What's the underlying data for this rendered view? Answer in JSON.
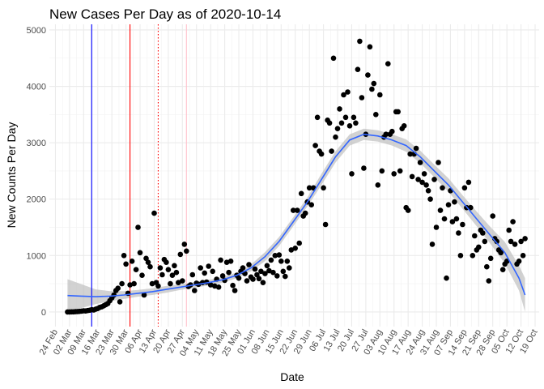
{
  "chart_data": {
    "type": "scatter",
    "title": "New Cases Per Day as of 2020-10-14",
    "xlabel": "Date",
    "ylabel": "New Counts Per Day",
    "ylim": [
      -260,
      5100
    ],
    "y_ticks": [
      0,
      1000,
      2000,
      3000,
      4000,
      5000
    ],
    "xlim": [
      "2020-02-21",
      "2020-10-21"
    ],
    "x_ticks": [
      "2020-02-24",
      "2020-03-02",
      "2020-03-09",
      "2020-03-16",
      "2020-03-23",
      "2020-03-30",
      "2020-04-06",
      "2020-04-13",
      "2020-04-20",
      "2020-04-27",
      "2020-05-04",
      "2020-05-11",
      "2020-05-18",
      "2020-05-25",
      "2020-06-01",
      "2020-06-08",
      "2020-06-15",
      "2020-06-22",
      "2020-06-29",
      "2020-07-06",
      "2020-07-13",
      "2020-07-20",
      "2020-07-27",
      "2020-08-03",
      "2020-08-10",
      "2020-08-17",
      "2020-08-24",
      "2020-08-31",
      "2020-09-07",
      "2020-09-14",
      "2020-09-21",
      "2020-09-28",
      "2020-10-05",
      "2020-10-12",
      "2020-10-19"
    ],
    "x_tick_labels": [
      "24 Feb",
      "02 Mar",
      "09 Mar",
      "16 Mar",
      "23 Mar",
      "30 Mar",
      "06 Apr",
      "13 Apr",
      "20 Apr",
      "27 Apr",
      "04 May",
      "11 May",
      "18 May",
      "25 May",
      "01 Jun",
      "08 Jun",
      "15 Jun",
      "22 Jun",
      "29 Jun",
      "06 Jul",
      "13 Jul",
      "20 Jul",
      "27 Jul",
      "03 Aug",
      "10 Aug",
      "17 Aug",
      "24 Aug",
      "31 Aug",
      "07 Sep",
      "14 Sep",
      "21 Sep",
      "28 Sep",
      "05 Oct",
      "12 Oct",
      "19 Oct"
    ],
    "grid": true,
    "vlines": [
      {
        "x": "2020-03-13",
        "color": "#0000ff",
        "style": "solid"
      },
      {
        "x": "2020-04-01",
        "color": "#ff0000",
        "style": "solid"
      },
      {
        "x": "2020-04-15",
        "color": "#ff0000",
        "style": "dotted"
      },
      {
        "x": "2020-04-29",
        "color": "#ffc0cb",
        "style": "solid"
      }
    ],
    "points": [
      [
        "2020-03-01",
        0
      ],
      [
        "2020-03-02",
        0
      ],
      [
        "2020-03-03",
        2
      ],
      [
        "2020-03-04",
        1
      ],
      [
        "2020-03-05",
        5
      ],
      [
        "2020-03-06",
        8
      ],
      [
        "2020-03-07",
        10
      ],
      [
        "2020-03-08",
        15
      ],
      [
        "2020-03-09",
        20
      ],
      [
        "2020-03-10",
        18
      ],
      [
        "2020-03-11",
        25
      ],
      [
        "2020-03-12",
        30
      ],
      [
        "2020-03-13",
        40
      ],
      [
        "2020-03-14",
        35
      ],
      [
        "2020-03-15",
        50
      ],
      [
        "2020-03-16",
        60
      ],
      [
        "2020-03-17",
        80
      ],
      [
        "2020-03-18",
        90
      ],
      [
        "2020-03-19",
        110
      ],
      [
        "2020-03-20",
        130
      ],
      [
        "2020-03-21",
        150
      ],
      [
        "2020-03-22",
        200
      ],
      [
        "2020-03-23",
        250
      ],
      [
        "2020-03-24",
        300
      ],
      [
        "2020-03-25",
        380
      ],
      [
        "2020-03-26",
        420
      ],
      [
        "2020-03-27",
        180
      ],
      [
        "2020-03-28",
        500
      ],
      [
        "2020-03-29",
        1000
      ],
      [
        "2020-03-30",
        850
      ],
      [
        "2020-03-31",
        330
      ],
      [
        "2020-04-01",
        480
      ],
      [
        "2020-04-02",
        900
      ],
      [
        "2020-04-03",
        500
      ],
      [
        "2020-04-04",
        750
      ],
      [
        "2020-04-05",
        1500
      ],
      [
        "2020-04-06",
        1050
      ],
      [
        "2020-04-07",
        650
      ],
      [
        "2020-04-08",
        300
      ],
      [
        "2020-04-09",
        950
      ],
      [
        "2020-04-10",
        880
      ],
      [
        "2020-04-11",
        800
      ],
      [
        "2020-04-12",
        500
      ],
      [
        "2020-04-13",
        1750
      ],
      [
        "2020-04-14",
        520
      ],
      [
        "2020-04-15",
        460
      ],
      [
        "2020-04-16",
        780
      ],
      [
        "2020-04-17",
        660
      ],
      [
        "2020-04-18",
        930
      ],
      [
        "2020-04-19",
        880
      ],
      [
        "2020-04-20",
        750
      ],
      [
        "2020-04-21",
        500
      ],
      [
        "2020-04-22",
        650
      ],
      [
        "2020-04-23",
        820
      ],
      [
        "2020-04-24",
        700
      ],
      [
        "2020-04-25",
        520
      ],
      [
        "2020-04-26",
        1020
      ],
      [
        "2020-04-27",
        550
      ],
      [
        "2020-04-28",
        1200
      ],
      [
        "2020-04-29",
        1080
      ],
      [
        "2020-04-30",
        450
      ],
      [
        "2020-05-01",
        480
      ],
      [
        "2020-05-02",
        660
      ],
      [
        "2020-05-03",
        380
      ],
      [
        "2020-05-04",
        510
      ],
      [
        "2020-05-05",
        490
      ],
      [
        "2020-05-06",
        780
      ],
      [
        "2020-05-07",
        520
      ],
      [
        "2020-05-08",
        690
      ],
      [
        "2020-05-09",
        530
      ],
      [
        "2020-05-10",
        810
      ],
      [
        "2020-05-11",
        480
      ],
      [
        "2020-05-12",
        720
      ],
      [
        "2020-05-13",
        460
      ],
      [
        "2020-05-14",
        580
      ],
      [
        "2020-05-15",
        440
      ],
      [
        "2020-05-16",
        920
      ],
      [
        "2020-05-17",
        640
      ],
      [
        "2020-05-18",
        560
      ],
      [
        "2020-05-19",
        880
      ],
      [
        "2020-05-20",
        700
      ],
      [
        "2020-05-21",
        900
      ],
      [
        "2020-05-22",
        470
      ],
      [
        "2020-05-23",
        380
      ],
      [
        "2020-05-24",
        650
      ],
      [
        "2020-05-25",
        600
      ],
      [
        "2020-05-26",
        720
      ],
      [
        "2020-05-27",
        780
      ],
      [
        "2020-05-28",
        680
      ],
      [
        "2020-05-29",
        550
      ],
      [
        "2020-05-30",
        840
      ],
      [
        "2020-05-31",
        620
      ],
      [
        "2020-06-01",
        580
      ],
      [
        "2020-06-02",
        760
      ],
      [
        "2020-06-03",
        660
      ],
      [
        "2020-06-04",
        590
      ],
      [
        "2020-06-05",
        720
      ],
      [
        "2020-06-06",
        520
      ],
      [
        "2020-06-07",
        680
      ],
      [
        "2020-06-08",
        820
      ],
      [
        "2020-06-09",
        730
      ],
      [
        "2020-06-10",
        920
      ],
      [
        "2020-06-11",
        700
      ],
      [
        "2020-06-12",
        1000
      ],
      [
        "2020-06-13",
        640
      ],
      [
        "2020-06-14",
        1010
      ],
      [
        "2020-06-15",
        900
      ],
      [
        "2020-06-16",
        720
      ],
      [
        "2020-06-17",
        630
      ],
      [
        "2020-06-18",
        900
      ],
      [
        "2020-06-19",
        780
      ],
      [
        "2020-06-20",
        1100
      ],
      [
        "2020-06-21",
        1800
      ],
      [
        "2020-06-22",
        1130
      ],
      [
        "2020-06-23",
        1800
      ],
      [
        "2020-06-24",
        1220
      ],
      [
        "2020-06-25",
        2100
      ],
      [
        "2020-06-26",
        1700
      ],
      [
        "2020-06-27",
        1750
      ],
      [
        "2020-06-28",
        1950
      ],
      [
        "2020-06-29",
        2200
      ],
      [
        "2020-06-30",
        1900
      ],
      [
        "2020-07-01",
        2200
      ],
      [
        "2020-07-02",
        2950
      ],
      [
        "2020-07-03",
        3450
      ],
      [
        "2020-07-04",
        2850
      ],
      [
        "2020-07-05",
        2800
      ],
      [
        "2020-07-06",
        2200
      ],
      [
        "2020-07-07",
        1550
      ],
      [
        "2020-07-08",
        3400
      ],
      [
        "2020-07-09",
        3350
      ],
      [
        "2020-07-10",
        2850
      ],
      [
        "2020-07-11",
        4500
      ],
      [
        "2020-07-12",
        3100
      ],
      [
        "2020-07-13",
        3250
      ],
      [
        "2020-07-14",
        3600
      ],
      [
        "2020-07-15",
        3350
      ],
      [
        "2020-07-16",
        3850
      ],
      [
        "2020-07-17",
        3450
      ],
      [
        "2020-07-18",
        3900
      ],
      [
        "2020-07-19",
        3300
      ],
      [
        "2020-07-20",
        2450
      ],
      [
        "2020-07-21",
        3450
      ],
      [
        "2020-07-22",
        3350
      ],
      [
        "2020-07-23",
        4300
      ],
      [
        "2020-07-24",
        4800
      ],
      [
        "2020-07-25",
        3800
      ],
      [
        "2020-07-26",
        2550
      ],
      [
        "2020-07-27",
        3150
      ],
      [
        "2020-07-28",
        4200
      ],
      [
        "2020-07-29",
        4700
      ],
      [
        "2020-07-30",
        3950
      ],
      [
        "2020-07-31",
        4050
      ],
      [
        "2020-08-01",
        3500
      ],
      [
        "2020-08-02",
        2250
      ],
      [
        "2020-08-03",
        3850
      ],
      [
        "2020-08-04",
        2500
      ],
      [
        "2020-08-05",
        3100
      ],
      [
        "2020-08-06",
        3150
      ],
      [
        "2020-08-07",
        4400
      ],
      [
        "2020-08-08",
        3150
      ],
      [
        "2020-08-09",
        3200
      ],
      [
        "2020-08-10",
        2450
      ],
      [
        "2020-08-11",
        3550
      ],
      [
        "2020-08-12",
        3550
      ],
      [
        "2020-08-13",
        2500
      ],
      [
        "2020-08-14",
        3250
      ],
      [
        "2020-08-15",
        3300
      ],
      [
        "2020-08-16",
        1850
      ],
      [
        "2020-08-17",
        1800
      ],
      [
        "2020-08-18",
        2800
      ],
      [
        "2020-08-19",
        2400
      ],
      [
        "2020-08-20",
        2800
      ],
      [
        "2020-08-21",
        2900
      ],
      [
        "2020-08-22",
        2350
      ],
      [
        "2020-08-23",
        2650
      ],
      [
        "2020-08-24",
        2300
      ],
      [
        "2020-08-25",
        2450
      ],
      [
        "2020-08-26",
        2250
      ],
      [
        "2020-08-27",
        2150
      ],
      [
        "2020-08-28",
        2000
      ],
      [
        "2020-08-29",
        1200
      ],
      [
        "2020-08-30",
        2350
      ],
      [
        "2020-08-31",
        1500
      ],
      [
        "2020-09-01",
        2650
      ],
      [
        "2020-09-02",
        1800
      ],
      [
        "2020-09-03",
        2200
      ],
      [
        "2020-09-04",
        1650
      ],
      [
        "2020-09-05",
        600
      ],
      [
        "2020-09-06",
        1900
      ],
      [
        "2020-09-07",
        2150
      ],
      [
        "2020-09-08",
        1600
      ],
      [
        "2020-09-09",
        1950
      ],
      [
        "2020-09-10",
        1650
      ],
      [
        "2020-09-11",
        1400
      ],
      [
        "2020-09-12",
        1000
      ],
      [
        "2020-09-13",
        1550
      ],
      [
        "2020-09-14",
        2200
      ],
      [
        "2020-09-15",
        1850
      ],
      [
        "2020-09-16",
        2300
      ],
      [
        "2020-09-17",
        1850
      ],
      [
        "2020-09-18",
        1000
      ],
      [
        "2020-09-19",
        1350
      ],
      [
        "2020-09-20",
        1100
      ],
      [
        "2020-09-21",
        1150
      ],
      [
        "2020-09-22",
        1450
      ],
      [
        "2020-09-23",
        1400
      ],
      [
        "2020-09-24",
        1250
      ],
      [
        "2020-09-25",
        800
      ],
      [
        "2020-09-26",
        550
      ],
      [
        "2020-09-27",
        950
      ],
      [
        "2020-09-28",
        1700
      ],
      [
        "2020-09-29",
        1300
      ],
      [
        "2020-09-30",
        1250
      ],
      [
        "2020-10-01",
        1100
      ],
      [
        "2020-10-02",
        1050
      ],
      [
        "2020-10-03",
        750
      ],
      [
        "2020-10-04",
        850
      ],
      [
        "2020-10-05",
        900
      ],
      [
        "2020-10-06",
        1450
      ],
      [
        "2020-10-07",
        1250
      ],
      [
        "2020-10-08",
        1600
      ],
      [
        "2020-10-09",
        1200
      ],
      [
        "2020-10-10",
        850
      ],
      [
        "2020-10-11",
        900
      ],
      [
        "2020-10-12",
        1250
      ],
      [
        "2020-10-13",
        1000
      ],
      [
        "2020-10-14",
        1300
      ]
    ],
    "point_color": "#000000",
    "smooth": {
      "color": "#3366ff",
      "band_color": "#bfbfbf",
      "x": [
        "2020-03-01",
        "2020-03-08",
        "2020-03-15",
        "2020-03-22",
        "2020-03-29",
        "2020-04-05",
        "2020-04-12",
        "2020-04-19",
        "2020-04-26",
        "2020-05-03",
        "2020-05-10",
        "2020-05-17",
        "2020-05-24",
        "2020-05-31",
        "2020-06-07",
        "2020-06-14",
        "2020-06-21",
        "2020-06-28",
        "2020-07-05",
        "2020-07-12",
        "2020-07-19",
        "2020-07-26",
        "2020-08-02",
        "2020-08-09",
        "2020-08-16",
        "2020-08-23",
        "2020-08-30",
        "2020-09-06",
        "2020-09-13",
        "2020-09-20",
        "2020-09-27",
        "2020-10-04",
        "2020-10-11",
        "2020-10-14"
      ],
      "y": [
        290,
        280,
        270,
        280,
        300,
        330,
        360,
        400,
        440,
        480,
        520,
        570,
        650,
        780,
        980,
        1250,
        1600,
        1950,
        2350,
        2750,
        3050,
        3150,
        3120,
        3050,
        2950,
        2750,
        2500,
        2250,
        1950,
        1650,
        1350,
        1050,
        600,
        300
      ],
      "lower": [
        0,
        70,
        140,
        190,
        230,
        270,
        300,
        340,
        390,
        430,
        470,
        520,
        600,
        720,
        900,
        1170,
        1520,
        1870,
        2250,
        2650,
        2950,
        3050,
        3020,
        2950,
        2840,
        2640,
        2390,
        2130,
        1830,
        1520,
        1200,
        860,
        380,
        0
      ],
      "upper": [
        580,
        490,
        400,
        370,
        370,
        390,
        420,
        460,
        490,
        530,
        570,
        620,
        700,
        840,
        1060,
        1330,
        1680,
        2030,
        2450,
        2850,
        3150,
        3250,
        3220,
        3150,
        3060,
        2860,
        2610,
        2370,
        2070,
        1780,
        1500,
        1240,
        820,
        600
      ]
    }
  }
}
